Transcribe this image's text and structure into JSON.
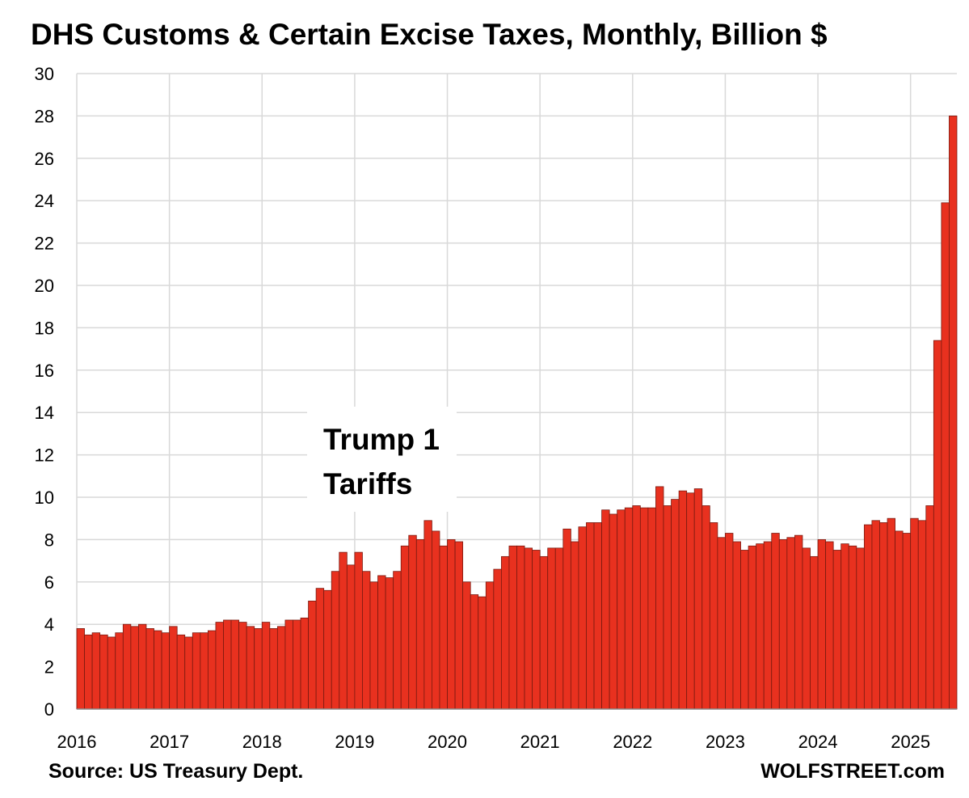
{
  "chart_data": {
    "type": "bar",
    "title": "DHS Customs & Certain Excise Taxes, Monthly, Billion $",
    "xlabel": "",
    "ylabel": "",
    "ylim": [
      0,
      30
    ],
    "yticks": [
      "0",
      "2",
      "4",
      "6",
      "8",
      "10",
      "12",
      "14",
      "16",
      "18",
      "20",
      "22",
      "24",
      "26",
      "28",
      "30"
    ],
    "xticks": [
      "2016",
      "2017",
      "2018",
      "2019",
      "2020",
      "2021",
      "2022",
      "2023",
      "2024",
      "2025"
    ],
    "start": "2016-01",
    "grid": true,
    "bar_color": "#e8311f",
    "bar_edge_color": "#7a1a10",
    "annotation": {
      "line1": "Trump 1",
      "line2": "Tariffs"
    },
    "values": [
      3.8,
      3.5,
      3.6,
      3.5,
      3.4,
      3.6,
      4.0,
      3.9,
      4.0,
      3.8,
      3.7,
      3.6,
      3.9,
      3.5,
      3.4,
      3.6,
      3.6,
      3.7,
      4.1,
      4.2,
      4.2,
      4.1,
      3.9,
      3.8,
      4.1,
      3.8,
      3.9,
      4.2,
      4.2,
      4.3,
      5.1,
      5.7,
      5.6,
      6.5,
      7.4,
      6.8,
      7.4,
      6.5,
      6.0,
      6.3,
      6.2,
      6.5,
      7.7,
      8.2,
      8.0,
      8.9,
      8.4,
      7.7,
      8.0,
      7.9,
      6.0,
      5.4,
      5.3,
      6.0,
      6.6,
      7.2,
      7.7,
      7.7,
      7.6,
      7.5,
      7.2,
      7.6,
      7.6,
      8.5,
      7.9,
      8.6,
      8.8,
      8.8,
      9.4,
      9.2,
      9.4,
      9.5,
      9.6,
      9.5,
      9.5,
      10.5,
      9.6,
      9.9,
      10.3,
      10.2,
      10.4,
      9.6,
      8.8,
      8.1,
      8.3,
      7.9,
      7.5,
      7.7,
      7.8,
      7.9,
      8.3,
      8.0,
      8.1,
      8.2,
      7.6,
      7.2,
      8.0,
      7.9,
      7.5,
      7.8,
      7.7,
      7.6,
      8.7,
      8.9,
      8.8,
      9.0,
      8.4,
      8.3,
      9.0,
      8.9,
      9.6,
      17.4,
      23.9,
      28.0
    ]
  },
  "footer": {
    "source": "Source: US Treasury Dept.",
    "brand": "WOLFSTREET.com"
  }
}
